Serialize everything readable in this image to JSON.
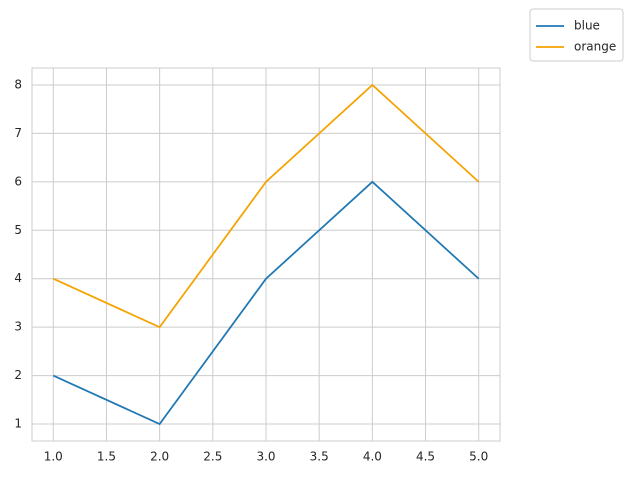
{
  "chart_data": {
    "type": "line",
    "x": [
      1,
      2,
      3,
      4,
      5
    ],
    "series": [
      {
        "name": "blue",
        "color": "#1f77b4",
        "values": [
          2,
          1,
          4,
          6,
          4
        ]
      },
      {
        "name": "orange",
        "color": "#f5a300",
        "values": [
          4,
          3,
          6,
          8,
          6
        ]
      }
    ],
    "xlim": [
      0.8,
      5.2
    ],
    "xticks": [
      {
        "value": 1,
        "label": "1.0"
      },
      {
        "value": 1.5,
        "label": "1.5"
      },
      {
        "value": 2,
        "label": "2.0"
      },
      {
        "value": 2.5,
        "label": "2.5"
      },
      {
        "value": 3,
        "label": "3.0"
      },
      {
        "value": 3.5,
        "label": "3.5"
      },
      {
        "value": 4,
        "label": "4.0"
      },
      {
        "value": 4.5,
        "label": "4.5"
      },
      {
        "value": 5,
        "label": "5.0"
      }
    ],
    "ylim": [
      0.65,
      8.35
    ],
    "yticks": [
      1,
      2,
      3,
      4,
      5,
      6,
      7,
      8
    ],
    "grid": true,
    "legend": "outside-upper-right"
  }
}
